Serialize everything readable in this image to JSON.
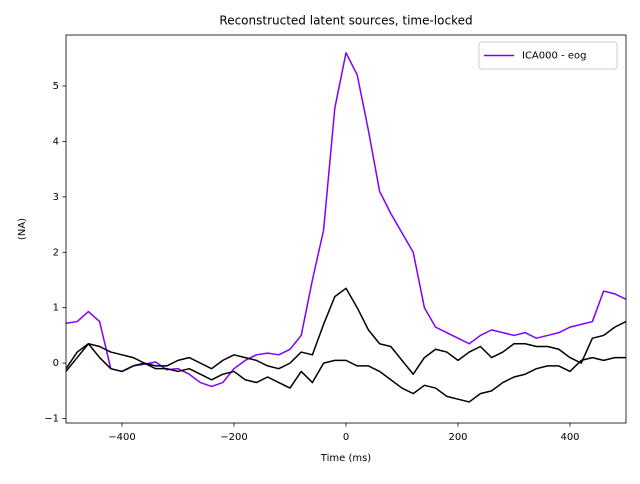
{
  "chart_data": {
    "type": "line",
    "title": "Reconstructed latent sources, time-locked",
    "xlabel": "Time (ms)",
    "ylabel": "(NA)",
    "x": [
      -500,
      -480,
      -460,
      -440,
      -420,
      -400,
      -380,
      -360,
      -340,
      -320,
      -300,
      -280,
      -260,
      -240,
      -220,
      -200,
      -180,
      -160,
      -140,
      -120,
      -100,
      -80,
      -60,
      -40,
      -20,
      0,
      20,
      40,
      60,
      80,
      100,
      120,
      140,
      160,
      180,
      200,
      220,
      240,
      260,
      280,
      300,
      320,
      340,
      360,
      380,
      400,
      420,
      440,
      460,
      480,
      500
    ],
    "series": [
      {
        "name": "ICA000 - eog",
        "color": "#8000ff",
        "values": [
          0.72,
          0.75,
          0.93,
          0.75,
          -0.1,
          -0.15,
          -0.05,
          -0.02,
          0.02,
          -0.12,
          -0.1,
          -0.2,
          -0.35,
          -0.42,
          -0.35,
          -0.1,
          0.05,
          0.15,
          0.18,
          0.15,
          0.25,
          0.5,
          1.5,
          2.4,
          4.6,
          5.6,
          5.2,
          4.2,
          3.1,
          2.7,
          2.35,
          2.0,
          1.0,
          0.65,
          0.55,
          0.45,
          0.35,
          0.5,
          0.6,
          0.55,
          0.5,
          0.55,
          0.45,
          0.5,
          0.55,
          0.65,
          0.7,
          0.75,
          1.3,
          1.25,
          1.15
        ]
      },
      {
        "color": "#000000",
        "values": [
          -0.1,
          0.2,
          0.35,
          0.3,
          0.2,
          0.15,
          0.1,
          0.0,
          -0.05,
          -0.05,
          0.05,
          0.1,
          0.0,
          -0.1,
          0.05,
          0.15,
          0.1,
          0.05,
          -0.05,
          -0.1,
          0.0,
          0.2,
          0.15,
          0.7,
          1.2,
          1.35,
          1.0,
          0.6,
          0.35,
          0.3,
          0.05,
          -0.2,
          0.1,
          0.25,
          0.2,
          0.05,
          0.2,
          0.3,
          0.1,
          0.2,
          0.35,
          0.35,
          0.3,
          0.3,
          0.25,
          0.1,
          0.0,
          0.45,
          0.5,
          0.65,
          0.75
        ]
      },
      {
        "color": "#000000",
        "values": [
          -0.15,
          0.1,
          0.35,
          0.1,
          -0.1,
          -0.15,
          -0.05,
          0.0,
          -0.1,
          -0.1,
          -0.15,
          -0.1,
          -0.2,
          -0.3,
          -0.2,
          -0.15,
          -0.3,
          -0.35,
          -0.25,
          -0.35,
          -0.45,
          -0.15,
          -0.35,
          0.0,
          0.05,
          0.05,
          -0.05,
          -0.05,
          -0.15,
          -0.3,
          -0.45,
          -0.55,
          -0.4,
          -0.45,
          -0.6,
          -0.65,
          -0.7,
          -0.55,
          -0.5,
          -0.35,
          -0.25,
          -0.2,
          -0.1,
          -0.05,
          -0.05,
          -0.15,
          0.05,
          0.1,
          0.05,
          0.1,
          0.1
        ]
      }
    ],
    "xlim": [
      -500,
      500
    ],
    "ylim": [
      -1.08,
      5.92
    ],
    "xticks": [
      {
        "value": -400,
        "label": "−400"
      },
      {
        "value": -200,
        "label": "−200"
      },
      0,
      200,
      400
    ],
    "yticks": [
      {
        "value": -1,
        "label": "−1"
      },
      0,
      1,
      2,
      3,
      4,
      5
    ],
    "grid": false,
    "legend": "upper right"
  }
}
